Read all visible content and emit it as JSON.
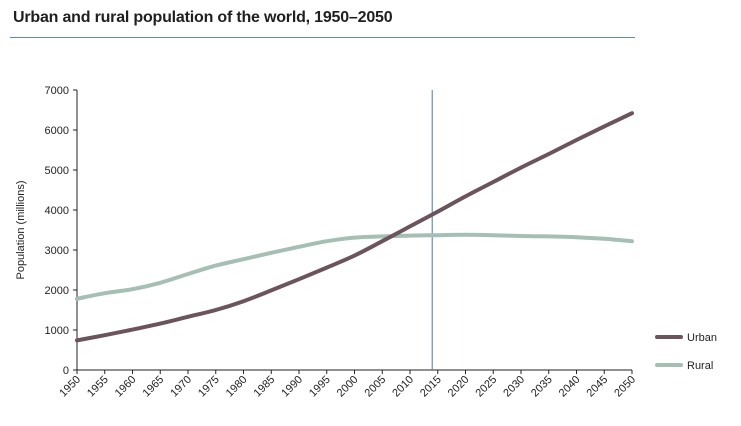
{
  "page": {
    "title": "Urban and rural population of the world, 1950–2050"
  },
  "chart_data": {
    "type": "line",
    "title": "Urban and rural population of the world, 1950–2050",
    "xlabel": "",
    "ylabel": "Population (millions)",
    "x": [
      1950,
      1955,
      1960,
      1965,
      1970,
      1975,
      1980,
      1985,
      1990,
      1995,
      2000,
      2005,
      2010,
      2015,
      2020,
      2025,
      2030,
      2035,
      2040,
      2045,
      2050
    ],
    "x_tick_labels": [
      "1950",
      "1955",
      "1960",
      "1965",
      "1970",
      "1975",
      "1980",
      "1985",
      "1990",
      "1995",
      "2000",
      "2005",
      "2010",
      "2015",
      "2020",
      "2025",
      "2030",
      "2035",
      "2040",
      "2045",
      "2050"
    ],
    "xlim": [
      1950,
      2050
    ],
    "ylim": [
      0,
      7000
    ],
    "y_ticks": [
      0,
      1000,
      2000,
      3000,
      4000,
      5000,
      6000,
      7000
    ],
    "y_tick_labels": [
      "0",
      "1000",
      "2000",
      "3000",
      "4000",
      "5000",
      "6000",
      "7000"
    ],
    "series": [
      {
        "name": "Urban",
        "color": "#6b545c",
        "values": [
          740,
          870,
          1010,
          1160,
          1330,
          1500,
          1720,
          1990,
          2270,
          2560,
          2860,
          3220,
          3590,
          3960,
          4340,
          4700,
          5060,
          5400,
          5750,
          6090,
          6420
        ]
      },
      {
        "name": "Rural",
        "color": "#a6bfb4",
        "values": [
          1780,
          1920,
          2020,
          2180,
          2400,
          2610,
          2770,
          2930,
          3080,
          3220,
          3310,
          3340,
          3360,
          3370,
          3380,
          3370,
          3350,
          3340,
          3320,
          3280,
          3220
        ]
      }
    ],
    "reference_line": {
      "x": 2014,
      "color": "#4a79a8"
    },
    "legend_position": "bottom-right",
    "grid": false
  }
}
